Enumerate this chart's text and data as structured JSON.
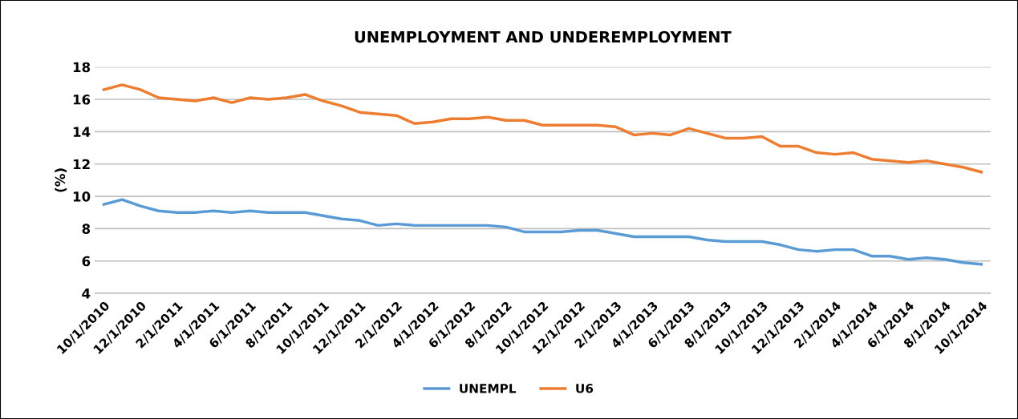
{
  "chart_data": {
    "type": "line",
    "title": "UNEMPLOYMENT AND UNDEREMPLOYMENT",
    "ylabel": "(%)",
    "categories": [
      "10/1/2010",
      null,
      "12/1/2010",
      null,
      "2/1/2011",
      null,
      "4/1/2011",
      null,
      "6/1/2011",
      null,
      "8/1/2011",
      null,
      "10/1/2011",
      null,
      "12/1/2011",
      null,
      "2/1/2012",
      null,
      "4/1/2012",
      null,
      "6/1/2012",
      null,
      "8/1/2012",
      null,
      "10/1/2012",
      null,
      "12/1/2012",
      null,
      "2/1/2013",
      null,
      "4/1/2013",
      null,
      "6/1/2013",
      null,
      "8/1/2013",
      null,
      "10/1/2013",
      null,
      "12/1/2013",
      null,
      "2/1/2014",
      null,
      "4/1/2014",
      null,
      "6/1/2014",
      null,
      "8/1/2014",
      null,
      "10/1/2014"
    ],
    "series": [
      {
        "name": "UNEMPL",
        "color": "#5b9bd5",
        "values": [
          9.5,
          9.8,
          9.4,
          9.1,
          9.0,
          9.0,
          9.1,
          9.0,
          9.1,
          9.0,
          9.0,
          9.0,
          8.8,
          8.6,
          8.5,
          8.2,
          8.3,
          8.2,
          8.2,
          8.2,
          8.2,
          8.2,
          8.1,
          7.8,
          7.8,
          7.8,
          7.9,
          7.9,
          7.7,
          7.5,
          7.5,
          7.5,
          7.5,
          7.3,
          7.2,
          7.2,
          7.2,
          7.0,
          6.7,
          6.6,
          6.7,
          6.7,
          6.3,
          6.3,
          6.1,
          6.2,
          6.1,
          5.9,
          5.8
        ]
      },
      {
        "name": "U6",
        "color": "#ed7d31",
        "values": [
          16.6,
          16.9,
          16.6,
          16.1,
          16.0,
          15.9,
          16.1,
          15.8,
          16.1,
          16.0,
          16.1,
          16.3,
          15.9,
          15.6,
          15.2,
          15.1,
          15.0,
          14.5,
          14.6,
          14.8,
          14.8,
          14.9,
          14.7,
          14.7,
          14.4,
          14.4,
          14.4,
          14.4,
          14.3,
          13.8,
          13.9,
          13.8,
          14.2,
          13.9,
          13.6,
          13.6,
          13.7,
          13.1,
          13.1,
          12.7,
          12.6,
          12.7,
          12.3,
          12.2,
          12.1,
          12.2,
          12.0,
          11.8,
          11.5
        ]
      }
    ],
    "ylim": [
      4,
      18
    ],
    "yticks": [
      4,
      6,
      8,
      10,
      12,
      14,
      16,
      18
    ],
    "grid": "y",
    "legend": "bottom",
    "marker": "none",
    "line_style": "solid"
  }
}
